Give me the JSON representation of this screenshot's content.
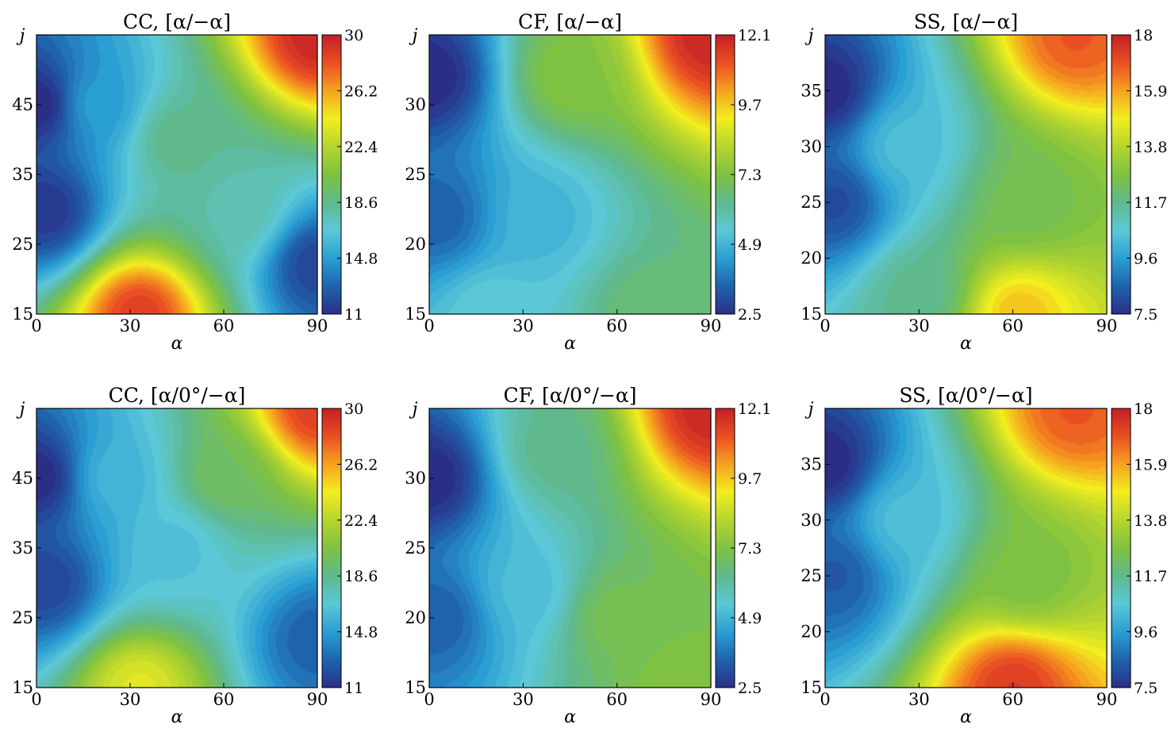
{
  "colormap": [
    "#2a2f86",
    "#1f63ad",
    "#2a9fd3",
    "#5cc8d7",
    "#5fb98d",
    "#7fc241",
    "#b6d52e",
    "#f2ee1f",
    "#f6a21f",
    "#ea4f23",
    "#c21f26"
  ],
  "chart_data": [
    {
      "type": "heatmap",
      "title": "CC, [α/−α]",
      "xlabel": "α",
      "ylabel": "j",
      "xlim": [
        0,
        90
      ],
      "ylim": [
        15,
        55
      ],
      "xticks": [
        "0",
        "30",
        "60",
        "90"
      ],
      "xtick_values": [
        0,
        30,
        60,
        90
      ],
      "yticks": [
        "15",
        "25",
        "35",
        "45"
      ],
      "ytick_values": [
        15,
        25,
        35,
        45
      ],
      "zlim": [
        11,
        30
      ],
      "cbar_ticks": [
        "11",
        "14.8",
        "18.6",
        "22.4",
        "26.2",
        "30"
      ],
      "features": [
        {
          "x": 0,
          "y": 45,
          "value": 11
        },
        {
          "x": 3,
          "y": 30,
          "value": 11.5
        },
        {
          "x": 33,
          "y": 15,
          "value": 29
        },
        {
          "x": 90,
          "y": 55,
          "value": 30
        },
        {
          "x": 90,
          "y": 22,
          "value": 12
        },
        {
          "x": 20,
          "y": 45,
          "value": 15
        },
        {
          "x": 45,
          "y": 40,
          "value": 19
        },
        {
          "x": 65,
          "y": 30,
          "value": 18
        }
      ]
    },
    {
      "type": "heatmap",
      "title": "CF, [α/−α]",
      "xlabel": "α",
      "ylabel": "j",
      "xlim": [
        0,
        90
      ],
      "ylim": [
        15,
        35
      ],
      "xticks": [
        "0",
        "30",
        "60",
        "90"
      ],
      "xtick_values": [
        0,
        30,
        60,
        90
      ],
      "yticks": [
        "15",
        "20",
        "25",
        "30"
      ],
      "ytick_values": [
        15,
        20,
        25,
        30
      ],
      "zlim": [
        2.5,
        12.1
      ],
      "cbar_ticks": [
        "2.5",
        "4.9",
        "7.3",
        "9.7",
        "12.1"
      ],
      "features": [
        {
          "x": 0,
          "y": 32,
          "value": 2.5
        },
        {
          "x": 3,
          "y": 22,
          "value": 3.5
        },
        {
          "x": 90,
          "y": 35,
          "value": 12.1
        },
        {
          "x": 35,
          "y": 22,
          "value": 5.0
        },
        {
          "x": 70,
          "y": 15,
          "value": 6.8
        },
        {
          "x": 20,
          "y": 15,
          "value": 5.6
        },
        {
          "x": 45,
          "y": 32,
          "value": 7.5
        }
      ]
    },
    {
      "type": "heatmap",
      "title": "SS, [α/−α]",
      "xlabel": "α",
      "ylabel": "j",
      "xlim": [
        0,
        90
      ],
      "ylim": [
        15,
        40
      ],
      "xticks": [
        "0",
        "30",
        "60",
        "90"
      ],
      "xtick_values": [
        0,
        30,
        60,
        90
      ],
      "yticks": [
        "15",
        "20",
        "25",
        "30",
        "35"
      ],
      "ytick_values": [
        15,
        20,
        25,
        30,
        35
      ],
      "zlim": [
        7.5,
        18
      ],
      "cbar_ticks": [
        "7.5",
        "9.6",
        "11.7",
        "13.8",
        "15.9",
        "18"
      ],
      "features": [
        {
          "x": 0,
          "y": 35,
          "value": 7.5
        },
        {
          "x": 3,
          "y": 25,
          "value": 8.2
        },
        {
          "x": 80,
          "y": 40,
          "value": 17
        },
        {
          "x": 62,
          "y": 15,
          "value": 15.6
        },
        {
          "x": 25,
          "y": 30,
          "value": 10.5
        },
        {
          "x": 65,
          "y": 25,
          "value": 12.6
        },
        {
          "x": 30,
          "y": 17,
          "value": 11.8
        }
      ]
    },
    {
      "type": "heatmap",
      "title": "CC, [α/0°/−α]",
      "xlabel": "α",
      "ylabel": "j",
      "xlim": [
        0,
        90
      ],
      "ylim": [
        15,
        55
      ],
      "xticks": [
        "0",
        "30",
        "60",
        "90"
      ],
      "xtick_values": [
        0,
        30,
        60,
        90
      ],
      "yticks": [
        "15",
        "25",
        "35",
        "45"
      ],
      "ytick_values": [
        15,
        25,
        35,
        45
      ],
      "zlim": [
        11,
        30
      ],
      "cbar_ticks": [
        "11",
        "14.8",
        "18.6",
        "22.4",
        "26.2",
        "30"
      ],
      "features": [
        {
          "x": 0,
          "y": 45,
          "value": 11
        },
        {
          "x": 3,
          "y": 30,
          "value": 12
        },
        {
          "x": 33,
          "y": 15,
          "value": 24
        },
        {
          "x": 90,
          "y": 55,
          "value": 29
        },
        {
          "x": 90,
          "y": 22,
          "value": 13
        },
        {
          "x": 25,
          "y": 45,
          "value": 16
        },
        {
          "x": 45,
          "y": 35,
          "value": 16.5
        },
        {
          "x": 60,
          "y": 45,
          "value": 20
        }
      ]
    },
    {
      "type": "heatmap",
      "title": "CF, [α/0°/−α]",
      "xlabel": "α",
      "ylabel": "j",
      "xlim": [
        0,
        90
      ],
      "ylim": [
        15,
        35
      ],
      "xticks": [
        "0",
        "30",
        "60",
        "90"
      ],
      "xtick_values": [
        0,
        30,
        60,
        90
      ],
      "yticks": [
        "15",
        "20",
        "25",
        "30"
      ],
      "ytick_values": [
        15,
        20,
        25,
        30
      ],
      "zlim": [
        2.5,
        12.1
      ],
      "cbar_ticks": [
        "2.5",
        "4.9",
        "7.3",
        "9.7",
        "12.1"
      ],
      "features": [
        {
          "x": 0,
          "y": 30,
          "value": 2.5
        },
        {
          "x": 3,
          "y": 20,
          "value": 3.5
        },
        {
          "x": 90,
          "y": 35,
          "value": 12.1
        },
        {
          "x": 30,
          "y": 22,
          "value": 5.2
        },
        {
          "x": 60,
          "y": 20,
          "value": 7.2
        },
        {
          "x": 80,
          "y": 15,
          "value": 7.5
        },
        {
          "x": 40,
          "y": 32,
          "value": 6.5
        }
      ]
    },
    {
      "type": "heatmap",
      "title": "SS, [α/0°/−α]",
      "xlabel": "α",
      "ylabel": "j",
      "xlim": [
        0,
        90
      ],
      "ylim": [
        15,
        40
      ],
      "xticks": [
        "0",
        "30",
        "60",
        "90"
      ],
      "xtick_values": [
        0,
        30,
        60,
        90
      ],
      "yticks": [
        "15",
        "20",
        "25",
        "30",
        "35"
      ],
      "ytick_values": [
        15,
        20,
        25,
        30,
        35
      ],
      "zlim": [
        7.5,
        18
      ],
      "cbar_ticks": [
        "7.5",
        "9.6",
        "11.7",
        "13.8",
        "15.9",
        "18"
      ],
      "features": [
        {
          "x": 0,
          "y": 35,
          "value": 7.5
        },
        {
          "x": 3,
          "y": 25,
          "value": 8.5
        },
        {
          "x": 80,
          "y": 40,
          "value": 17
        },
        {
          "x": 60,
          "y": 15,
          "value": 17.5
        },
        {
          "x": 25,
          "y": 30,
          "value": 10.5
        },
        {
          "x": 65,
          "y": 25,
          "value": 12.8
        }
      ]
    }
  ]
}
